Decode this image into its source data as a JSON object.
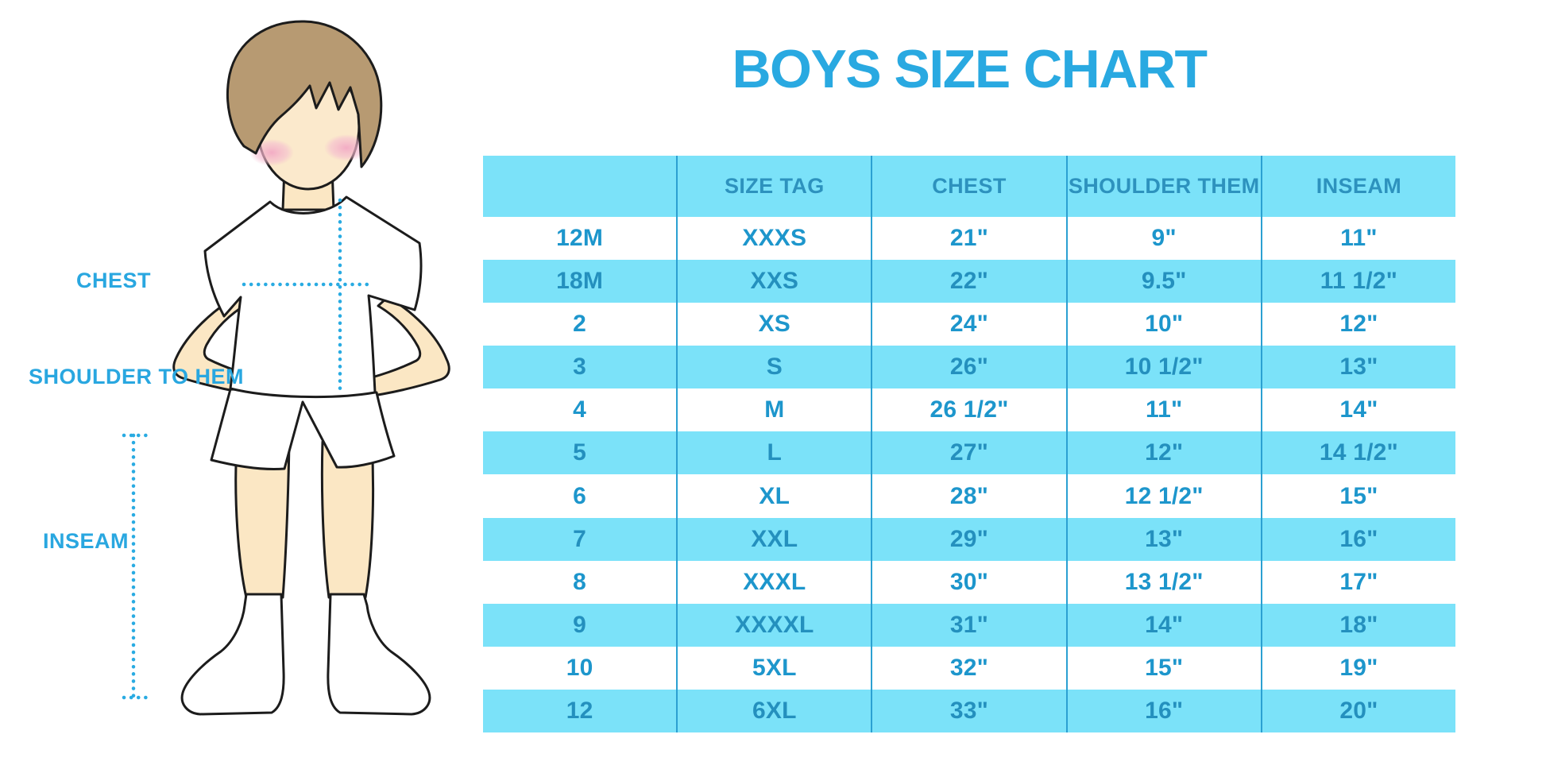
{
  "title": {
    "text": "BOYS SIZE CHART",
    "color": "#29A9E1"
  },
  "figure": {
    "labels": {
      "chest": "CHEST",
      "shoulder_to_hem": "SHOULDER TO HEM",
      "inseam": "INSEAM"
    },
    "colors": {
      "skin": "#FBE7C4",
      "hair": "#B79A72",
      "blush": "#F2A9C4",
      "outline": "#1C1C1C",
      "garment": "#FFFFFF",
      "measure_dots": "#29ABE2"
    }
  },
  "chart_data": {
    "type": "table",
    "title": "BOYS SIZE CHART",
    "columns": [
      "",
      "SIZE TAG",
      "CHEST",
      "SHOULDER THEM",
      "INSEAM"
    ],
    "rows": [
      [
        "12M",
        "XXXS",
        "21\"",
        "9\"",
        "11\""
      ],
      [
        "18M",
        "XXS",
        "22\"",
        "9.5\"",
        "11 1/2\""
      ],
      [
        "2",
        "XS",
        "24\"",
        "10\"",
        "12\""
      ],
      [
        "3",
        "S",
        "26\"",
        "10 1/2\"",
        "13\""
      ],
      [
        "4",
        "M",
        "26 1/2\"",
        "11\"",
        "14\""
      ],
      [
        "5",
        "L",
        "27\"",
        "12\"",
        "14 1/2\""
      ],
      [
        "6",
        "XL",
        "28\"",
        "12 1/2\"",
        "15\""
      ],
      [
        "7",
        "XXL",
        "29\"",
        "13\"",
        "16\""
      ],
      [
        "8",
        "XXXL",
        "30\"",
        "13 1/2\"",
        "17\""
      ],
      [
        "9",
        "XXXXL",
        "31\"",
        "14\"",
        "18\""
      ],
      [
        "10",
        "5XL",
        "32\"",
        "15\"",
        "19\""
      ],
      [
        "12",
        "6XL",
        "33\"",
        "16\"",
        "20\""
      ]
    ],
    "layout": {
      "striped": true,
      "stripe_color": "#7BE2F9",
      "header_bg": "#7BE2F9",
      "header_text_color": "#2D92BE",
      "cell_text_color": "#1D96CC",
      "divider_color": "#2BA0D2",
      "legend": "none",
      "grid": "vertical dividers only"
    }
  }
}
